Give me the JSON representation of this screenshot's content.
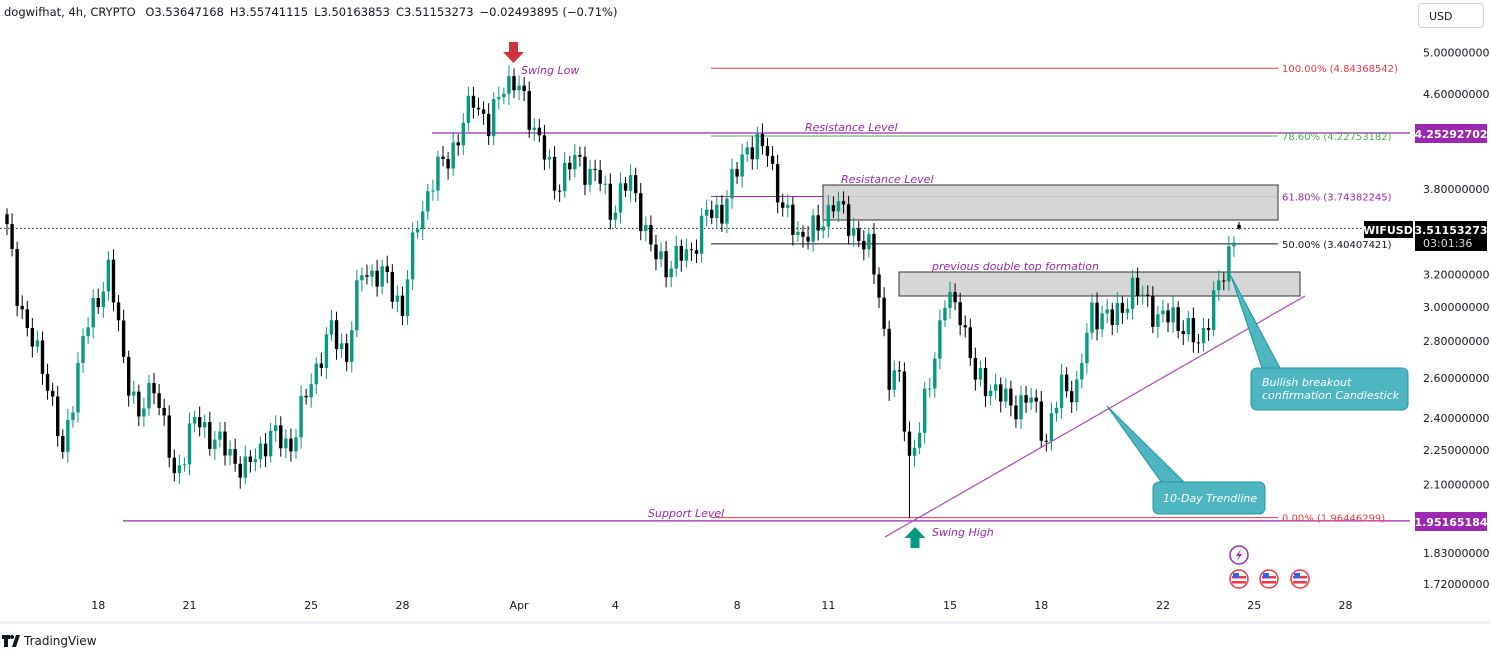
{
  "legend": {
    "symbol": "dogwifhat, 4h, CRYPTO",
    "open": "O3.53647168",
    "high": "H3.55741115",
    "low": "L3.50163853",
    "close": "C3.51153273",
    "change": "−0.02493895 (−0.71%)"
  },
  "currency_button": "USD",
  "brand": "TradingView",
  "colors": {
    "up": "#089981",
    "down": "#000000",
    "accent": "#9c27b0",
    "fib_red": "#f23645",
    "fib_green": "#4caf50",
    "callout": "#4db6c0"
  },
  "chart_data": {
    "type": "candlestick",
    "symbol": "WIFUSD",
    "timeframe": "4h",
    "yscale": "log",
    "close_path": [
      [
        0,
        3.5
      ],
      [
        2,
        3.1
      ],
      [
        4,
        2.86
      ],
      [
        8,
        2.59
      ],
      [
        11,
        2.21
      ],
      [
        15,
        2.81
      ],
      [
        20,
        3.23
      ],
      [
        23,
        2.7
      ],
      [
        26,
        2.39
      ],
      [
        29,
        2.59
      ],
      [
        33,
        2.12
      ],
      [
        37,
        2.39
      ],
      [
        41,
        2.3
      ],
      [
        47,
        2.16
      ],
      [
        52,
        2.32
      ],
      [
        56,
        2.27
      ],
      [
        60,
        2.59
      ],
      [
        64,
        2.86
      ],
      [
        67,
        2.72
      ],
      [
        70,
        3.23
      ],
      [
        75,
        3.17
      ],
      [
        78,
        2.98
      ],
      [
        81,
        3.57
      ],
      [
        85,
        3.95
      ],
      [
        89,
        4.19
      ],
      [
        92,
        4.59
      ],
      [
        95,
        4.28
      ],
      [
        98,
        4.73
      ],
      [
        101,
        4.64
      ],
      [
        105,
        4.19
      ],
      [
        108,
        3.83
      ],
      [
        112,
        4.03
      ],
      [
        117,
        3.87
      ],
      [
        119,
        3.64
      ],
      [
        123,
        3.87
      ],
      [
        127,
        3.36
      ],
      [
        130,
        3.26
      ],
      [
        135,
        3.36
      ],
      [
        138,
        3.61
      ],
      [
        141,
        3.64
      ],
      [
        146,
        4.15
      ],
      [
        150,
        4.11
      ],
      [
        153,
        3.64
      ],
      [
        156,
        3.47
      ],
      [
        160,
        3.5
      ],
      [
        163,
        3.72
      ],
      [
        166,
        3.54
      ],
      [
        170,
        3.36
      ],
      [
        172,
        3.1
      ],
      [
        174,
        2.59
      ],
      [
        176,
        2.59
      ],
      [
        178,
        2.21
      ],
      [
        180,
        2.34
      ],
      [
        182,
        2.59
      ],
      [
        185,
        3.04
      ],
      [
        188,
        2.98
      ],
      [
        191,
        2.59
      ],
      [
        194,
        2.56
      ],
      [
        198,
        2.46
      ],
      [
        202,
        2.49
      ],
      [
        205,
        2.3
      ],
      [
        208,
        2.56
      ],
      [
        211,
        2.54
      ],
      [
        214,
        2.98
      ],
      [
        218,
        2.92
      ],
      [
        222,
        3.1
      ],
      [
        225,
        3.04
      ],
      [
        227,
        2.92
      ],
      [
        230,
        2.95
      ],
      [
        235,
        2.78
      ],
      [
        238,
        3.04
      ],
      [
        240,
        3.2
      ],
      [
        242,
        3.49
      ],
      [
        243,
        3.5115
      ]
    ],
    "last_candle": {
      "open": 3.53647168,
      "high": 3.55741115,
      "low": 3.50163853,
      "close": 3.51153273
    },
    "y_ticks": [
      {
        "price": 5.0,
        "label": "5.00000000"
      },
      {
        "price": 4.6,
        "label": "4.60000000"
      },
      {
        "price": 3.8,
        "label": "3.80000000"
      },
      {
        "price": 3.2,
        "label": "3.20000000"
      },
      {
        "price": 3.0,
        "label": "3.00000000"
      },
      {
        "price": 2.8,
        "label": "2.80000000"
      },
      {
        "price": 2.6,
        "label": "2.60000000"
      },
      {
        "price": 2.4,
        "label": "2.40000000"
      },
      {
        "price": 2.25,
        "label": "2.25000000"
      },
      {
        "price": 2.1,
        "label": "2.10000000"
      },
      {
        "price": 1.83,
        "label": "1.83000000"
      },
      {
        "price": 1.72,
        "label": "1.72000000"
      }
    ],
    "x_ticks": [
      {
        "t": 18,
        "label": "18"
      },
      {
        "t": 36,
        "label": "21"
      },
      {
        "t": 60,
        "label": "25"
      },
      {
        "t": 78,
        "label": "28"
      },
      {
        "t": 101,
        "label": "Apr"
      },
      {
        "t": 120,
        "label": "4"
      },
      {
        "t": 144,
        "label": "8"
      },
      {
        "t": 162,
        "label": "11"
      },
      {
        "t": 186,
        "label": "15"
      },
      {
        "t": 204,
        "label": "18"
      },
      {
        "t": 228,
        "label": "22"
      },
      {
        "t": 246,
        "label": "25"
      },
      {
        "t": 264,
        "label": "28"
      }
    ],
    "fibonacci": [
      {
        "level": "100.00% (4.84368542)",
        "price": 4.84368542,
        "color": "#f23645"
      },
      {
        "level": "78.60% (4.22753182)",
        "price": 4.22753182,
        "color": "#4caf50"
      },
      {
        "level": "61.80% (3.74382245)",
        "price": 3.74382245,
        "color": "#9c27b0"
      },
      {
        "level": "50.00% (3.40407421)",
        "price": 3.40407421,
        "color": "#131722"
      },
      {
        "level": "0.00% (1.96446299)",
        "price": 1.96446299,
        "color": "#f23645"
      }
    ],
    "price_tags": {
      "resistance": "4.25292702",
      "support": "1.95165184",
      "current_symbol": "WIFUSD",
      "current_price": "3.51153273",
      "countdown": "03:01:36"
    },
    "resistance_price": 4.25292702,
    "support_price": 1.95165184,
    "annotations": {
      "swing_low": "Swing Low",
      "swing_high": "Swing High",
      "resistance_1": "Resistance Level",
      "resistance_2": "Resistance Level",
      "support": "Support Level",
      "double_top": "previous double top formation",
      "breakout_line1": "Bullish breakout",
      "breakout_line2": "confirmation Candlestick",
      "trendline": "10-Day Trendline"
    }
  }
}
